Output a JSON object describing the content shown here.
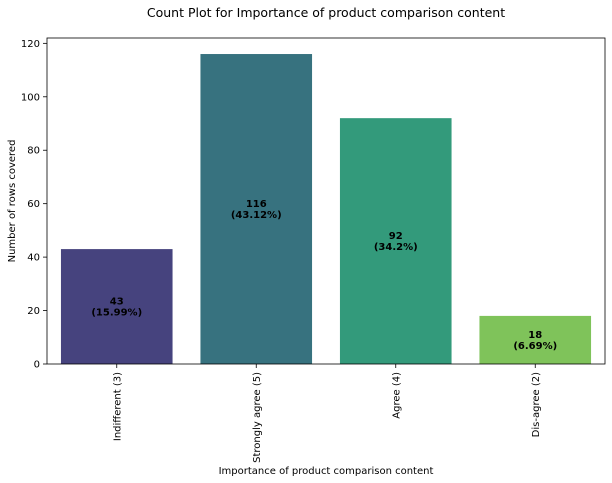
{
  "chart_data": {
    "type": "bar",
    "title": "Count Plot for Importance of product comparison content",
    "xlabel": "Importance of product comparison content",
    "ylabel": "Number of rows covered",
    "categories": [
      "Indifferent (3)",
      "Strongly agree (5)",
      "Agree (4)",
      "Dis-agree (2)"
    ],
    "values": [
      43,
      116,
      92,
      18
    ],
    "bar_labels": [
      [
        "43",
        "(15.99%)"
      ],
      [
        "116",
        "(43.12%)"
      ],
      [
        "92",
        "(34.2%)"
      ],
      [
        "18",
        "(6.69%)"
      ]
    ],
    "colors": [
      "#46437e",
      "#37727f",
      "#339a7b",
      "#7fc35a"
    ],
    "ylim": [
      0,
      122
    ],
    "yticks": [
      0,
      20,
      40,
      60,
      80,
      100,
      120
    ],
    "grid": false,
    "legend": "none"
  }
}
